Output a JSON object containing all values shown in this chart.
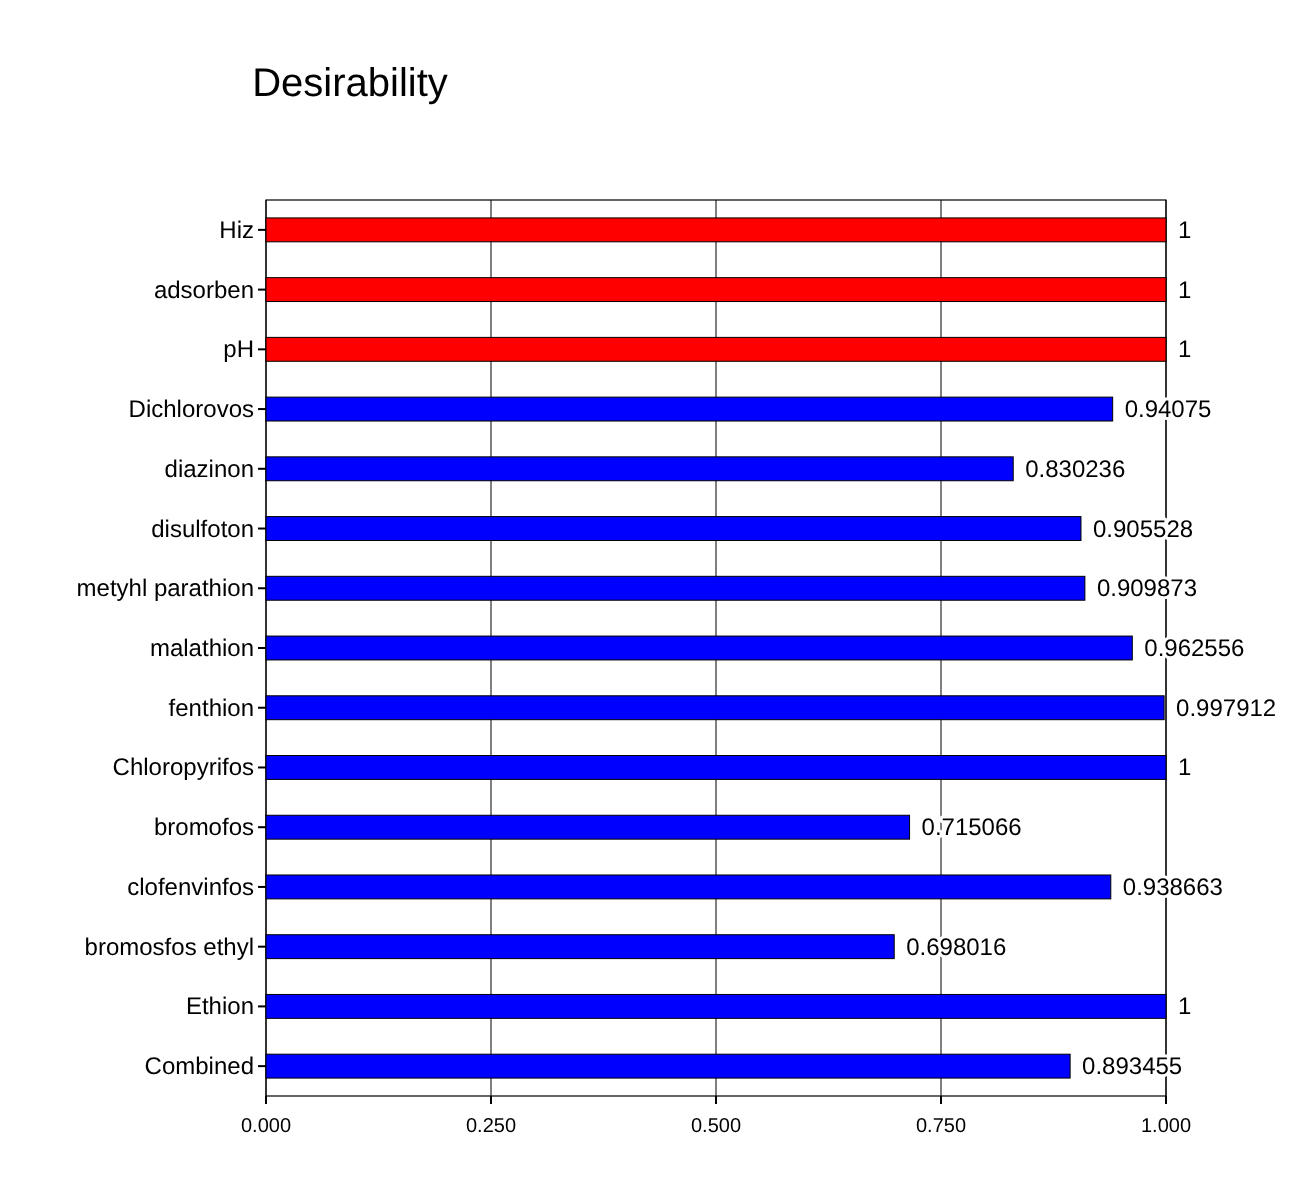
{
  "chart_data": {
    "type": "bar",
    "orientation": "horizontal",
    "title": "Desirability",
    "categories": [
      "Hiz",
      "adsorben",
      "pH",
      "Dichlorovos",
      "diazinon",
      "disulfoton",
      "metyhl parathion",
      "malathion",
      "fenthion",
      "Chloropyrifos",
      "bromofos",
      "clofenvinfos",
      "bromosfos ethyl",
      "Ethion",
      "Combined"
    ],
    "values": [
      1,
      1,
      1,
      0.94075,
      0.830236,
      0.905528,
      0.909873,
      0.962556,
      0.997912,
      1,
      0.715066,
      0.938663,
      0.698016,
      1,
      0.893455
    ],
    "colors": [
      "#ff0000",
      "#ff0000",
      "#ff0000",
      "#0000ff",
      "#0000ff",
      "#0000ff",
      "#0000ff",
      "#0000ff",
      "#0000ff",
      "#0000ff",
      "#0000ff",
      "#0000ff",
      "#0000ff",
      "#0000ff",
      "#0000ff"
    ],
    "xlim": [
      0,
      1
    ],
    "xticks": [
      {
        "value": 0,
        "label": "0.000"
      },
      {
        "value": 0.25,
        "label": "0.250"
      },
      {
        "value": 0.5,
        "label": "0.500"
      },
      {
        "value": 0.75,
        "label": "0.750"
      },
      {
        "value": 1,
        "label": "1.000"
      }
    ],
    "grid": "x",
    "data_labels": true
  }
}
